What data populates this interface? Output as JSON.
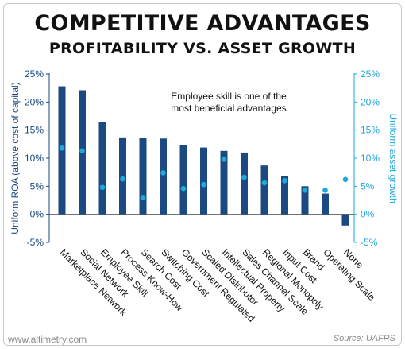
{
  "title": "COMPETITIVE ADVANTAGES",
  "subtitle": "PROFITABILITY VS. ASSET GROWTH",
  "footer_left": "www.altimetry.com",
  "footer_right": "Source: UAFRS",
  "colors": {
    "bar": "#1b4a82",
    "point": "#1fa8dc",
    "left_axis_text": "#1b4a82",
    "right_axis_text": "#1fa8dc",
    "title": "#111111"
  },
  "chart_data": {
    "type": "bar",
    "categories": [
      "Marketplace Network",
      "Social Network",
      "Employee Skill",
      "Process Know-How",
      "Search Cost",
      "Switching Cost",
      "Government Regulated",
      "Scaled Distributor",
      "Intellectual Property",
      "Sales Channel Scale",
      "Regional Monopoly",
      "Input Cost",
      "Brand",
      "Operating Scale",
      "None"
    ],
    "series": [
      {
        "name": "Uniform ROA (above cost of capital)",
        "chart": "bar",
        "axis": "left",
        "values": [
          22.8,
          22.1,
          16.5,
          13.7,
          13.6,
          13.5,
          12.4,
          11.9,
          11.3,
          11.0,
          8.7,
          6.8,
          5.0,
          3.7,
          -2.0
        ]
      },
      {
        "name": "Uniform asset growth",
        "chart": "scatter",
        "axis": "right",
        "values": [
          11.8,
          11.3,
          4.8,
          6.3,
          3.0,
          7.4,
          4.6,
          5.3,
          9.8,
          6.6,
          5.6,
          6.0,
          4.3,
          4.3,
          6.2
        ]
      }
    ],
    "ylabel_left": "Uniform ROA (above cost of capital)",
    "ylabel_right": "Uniform asset growth",
    "ylim": [
      -5,
      25
    ],
    "yticks": [
      "-5%",
      "0%",
      "5%",
      "10%",
      "15%",
      "20%",
      "25%"
    ],
    "annotation": "Employee skill is one of the most beneficial advantages",
    "annotation_lines": [
      "Employee skill is one of the",
      "most beneficial advantages"
    ],
    "grid": false,
    "legend": "none"
  }
}
